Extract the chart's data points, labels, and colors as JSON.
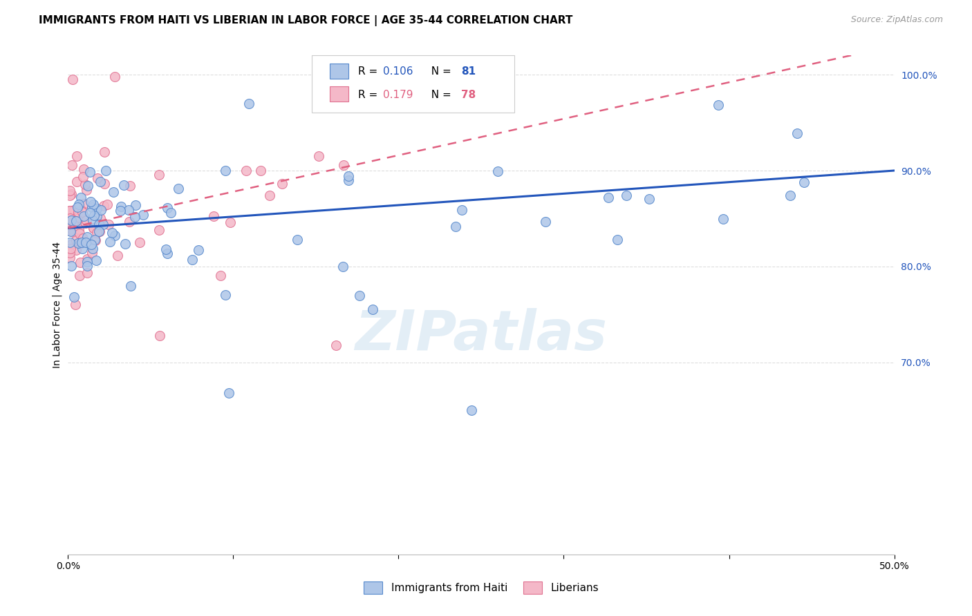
{
  "title": "IMMIGRANTS FROM HAITI VS LIBERIAN IN LABOR FORCE | AGE 35-44 CORRELATION CHART",
  "source": "Source: ZipAtlas.com",
  "ylabel": "In Labor Force | Age 35-44",
  "xmin": 0.0,
  "xmax": 0.5,
  "ymin": 0.5,
  "ymax": 1.02,
  "yticks": [
    0.7,
    0.8,
    0.9,
    1.0
  ],
  "xticks": [
    0.0,
    0.1,
    0.2,
    0.3,
    0.4,
    0.5
  ],
  "xtick_labels": [
    "0.0%",
    "",
    "",
    "",
    "",
    "50.0%"
  ],
  "haiti_R": 0.106,
  "haiti_N": 81,
  "liberia_R": 0.179,
  "liberia_N": 78,
  "haiti_color": "#aec6e8",
  "liberia_color": "#f4b8c8",
  "haiti_edge_color": "#5588cc",
  "liberia_edge_color": "#e07090",
  "haiti_line_color": "#2255bb",
  "liberia_line_color": "#e06080",
  "haiti_line_intercept": 0.84,
  "haiti_line_slope": 0.12,
  "liberia_line_intercept": 0.84,
  "liberia_line_slope": 0.38,
  "watermark": "ZIPatlas",
  "background_color": "#ffffff",
  "grid_color": "#dddddd",
  "title_fontsize": 11,
  "source_fontsize": 9,
  "tick_fontsize": 10
}
